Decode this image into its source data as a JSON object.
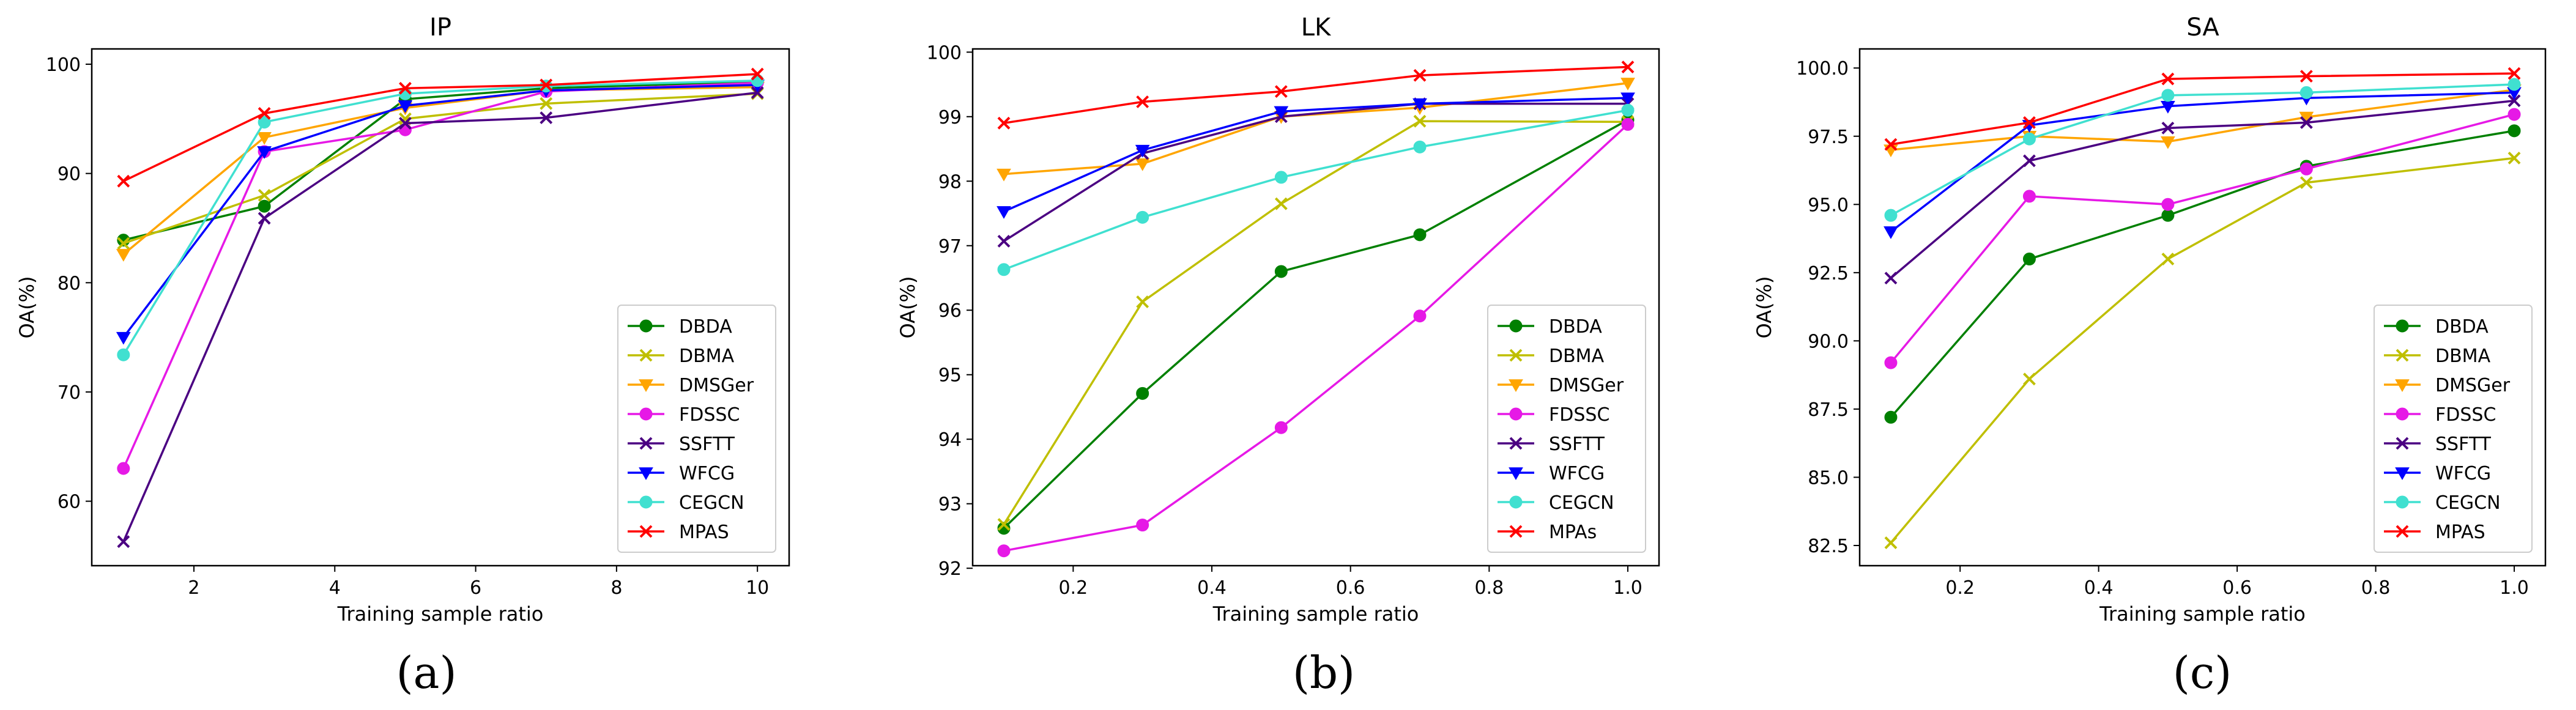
{
  "chart_data": [
    {
      "type": "line",
      "title": "IP",
      "caption": "(a)",
      "xlabel": "Training sample ratio",
      "ylabel": "OA(%)",
      "xlim": [
        0.55,
        10.45
      ],
      "ylim": [
        54.1,
        101.4
      ],
      "xticks": [
        2,
        4,
        6,
        8,
        10
      ],
      "xtick_labels": [
        "2",
        "4",
        "6",
        "8",
        "10"
      ],
      "yticks": [
        60,
        70,
        80,
        90,
        100
      ],
      "ytick_labels": [
        "60",
        "70",
        "80",
        "90",
        "100"
      ],
      "legend_position": "lower-right",
      "x": [
        1,
        3,
        5,
        7,
        10
      ],
      "series": [
        {
          "name": "DBDA",
          "color": "#008000",
          "marker": "circle",
          "values": [
            83.9,
            87.0,
            96.8,
            97.8,
            98.4
          ]
        },
        {
          "name": "DBMA",
          "color": "#bfbf00",
          "marker": "x",
          "values": [
            83.6,
            88.0,
            95.0,
            96.4,
            97.3
          ]
        },
        {
          "name": "DMSGer",
          "color": "#ffa500",
          "marker": "triangle-down",
          "values": [
            82.6,
            93.3,
            96.0,
            97.6,
            97.9
          ]
        },
        {
          "name": "FDSSC",
          "color": "#e619e6",
          "marker": "circle",
          "values": [
            63.0,
            92.0,
            94.0,
            97.5,
            98.3
          ]
        },
        {
          "name": "SSFTT",
          "color": "#4b0082",
          "marker": "x",
          "values": [
            56.3,
            85.9,
            94.6,
            95.1,
            97.4
          ]
        },
        {
          "name": "WFCG",
          "color": "#0000ff",
          "marker": "triangle-down",
          "values": [
            75.0,
            92.0,
            96.2,
            97.6,
            98.1
          ]
        },
        {
          "name": "CEGCN",
          "color": "#40e0d0",
          "marker": "circle",
          "values": [
            73.4,
            94.7,
            97.3,
            98.0,
            98.5
          ]
        },
        {
          "name": "MPAS",
          "color": "#ff0000",
          "marker": "x",
          "values": [
            89.3,
            95.5,
            97.8,
            98.1,
            99.1
          ]
        }
      ]
    },
    {
      "type": "line",
      "title": "LK",
      "caption": "(b)",
      "xlabel": "Training sample ratio",
      "ylabel": "OA(%)",
      "xlim": [
        0.055,
        1.045
      ],
      "ylim": [
        92.04,
        100.05
      ],
      "xticks": [
        0.2,
        0.4,
        0.6,
        0.8,
        1.0
      ],
      "xtick_labels": [
        "0.2",
        "0.4",
        "0.6",
        "0.8",
        "1.0"
      ],
      "yticks": [
        92,
        93,
        94,
        95,
        96,
        97,
        98,
        99,
        100
      ],
      "ytick_labels": [
        "92",
        "93",
        "94",
        "95",
        "96",
        "97",
        "98",
        "99",
        "100"
      ],
      "legend_position": "lower-right",
      "x": [
        0.1,
        0.3,
        0.5,
        0.7,
        1.0
      ],
      "series": [
        {
          "name": "DBDA",
          "color": "#008000",
          "marker": "circle",
          "values": [
            92.62,
            94.71,
            96.6,
            97.17,
            98.95
          ]
        },
        {
          "name": "DBMA",
          "color": "#bfbf00",
          "marker": "x",
          "values": [
            92.68,
            96.13,
            97.65,
            98.93,
            98.92
          ]
        },
        {
          "name": "DMSGer",
          "color": "#ffa500",
          "marker": "triangle-down",
          "values": [
            98.11,
            98.27,
            99.0,
            99.14,
            99.52
          ]
        },
        {
          "name": "FDSSC",
          "color": "#e619e6",
          "marker": "circle",
          "values": [
            92.27,
            92.67,
            94.18,
            95.91,
            98.88
          ]
        },
        {
          "name": "SSFTT",
          "color": "#4b0082",
          "marker": "x",
          "values": [
            97.07,
            98.43,
            99.0,
            99.2,
            99.2
          ]
        },
        {
          "name": "WFCG",
          "color": "#0000ff",
          "marker": "triangle-down",
          "values": [
            97.53,
            98.48,
            99.08,
            99.2,
            99.29
          ]
        },
        {
          "name": "CEGCN",
          "color": "#40e0d0",
          "marker": "circle",
          "values": [
            96.63,
            97.44,
            98.06,
            98.53,
            99.1
          ]
        },
        {
          "name": "MPAs",
          "color": "#ff0000",
          "marker": "x",
          "values": [
            98.9,
            99.23,
            99.39,
            99.64,
            99.77
          ]
        }
      ]
    },
    {
      "type": "line",
      "title": "SA",
      "caption": "(c)",
      "xlabel": "Training sample ratio",
      "ylabel": "OA(%)",
      "xlim": [
        0.055,
        1.045
      ],
      "ylim": [
        81.76,
        100.7
      ],
      "xticks": [
        0.2,
        0.4,
        0.6,
        0.8,
        1.0
      ],
      "xtick_labels": [
        "0.2",
        "0.4",
        "0.6",
        "0.8",
        "1.0"
      ],
      "yticks": [
        82.5,
        85.0,
        87.5,
        90.0,
        92.5,
        95.0,
        97.5,
        100.0
      ],
      "ytick_labels": [
        "82.5",
        "85.0",
        "87.5",
        "90.0",
        "92.5",
        "95.0",
        "97.5",
        "100.0"
      ],
      "legend_position": "lower-right",
      "x": [
        0.1,
        0.3,
        0.5,
        0.7,
        1.0
      ],
      "series": [
        {
          "name": "DBDA",
          "color": "#008000",
          "marker": "circle",
          "values": [
            87.2,
            93.0,
            94.6,
            96.4,
            97.7
          ]
        },
        {
          "name": "DBMA",
          "color": "#bfbf00",
          "marker": "x",
          "values": [
            82.6,
            88.6,
            93.0,
            95.8,
            96.7
          ]
        },
        {
          "name": "DMSGer",
          "color": "#ffa500",
          "marker": "triangle-down",
          "values": [
            97.0,
            97.5,
            97.3,
            98.2,
            99.2
          ]
        },
        {
          "name": "FDSSC",
          "color": "#e619e6",
          "marker": "circle",
          "values": [
            89.2,
            95.3,
            95.0,
            96.3,
            98.3
          ]
        },
        {
          "name": "SSFTT",
          "color": "#4b0082",
          "marker": "x",
          "values": [
            92.3,
            96.6,
            97.8,
            98.0,
            98.8
          ]
        },
        {
          "name": "WFCG",
          "color": "#0000ff",
          "marker": "triangle-down",
          "values": [
            94.0,
            97.9,
            98.6,
            98.9,
            99.1
          ]
        },
        {
          "name": "CEGCN",
          "color": "#40e0d0",
          "marker": "circle",
          "values": [
            94.6,
            97.4,
            99.0,
            99.1,
            99.4
          ]
        },
        {
          "name": "MPAS",
          "color": "#ff0000",
          "marker": "x",
          "values": [
            97.2,
            98.0,
            99.6,
            99.7,
            99.8
          ]
        }
      ]
    }
  ]
}
